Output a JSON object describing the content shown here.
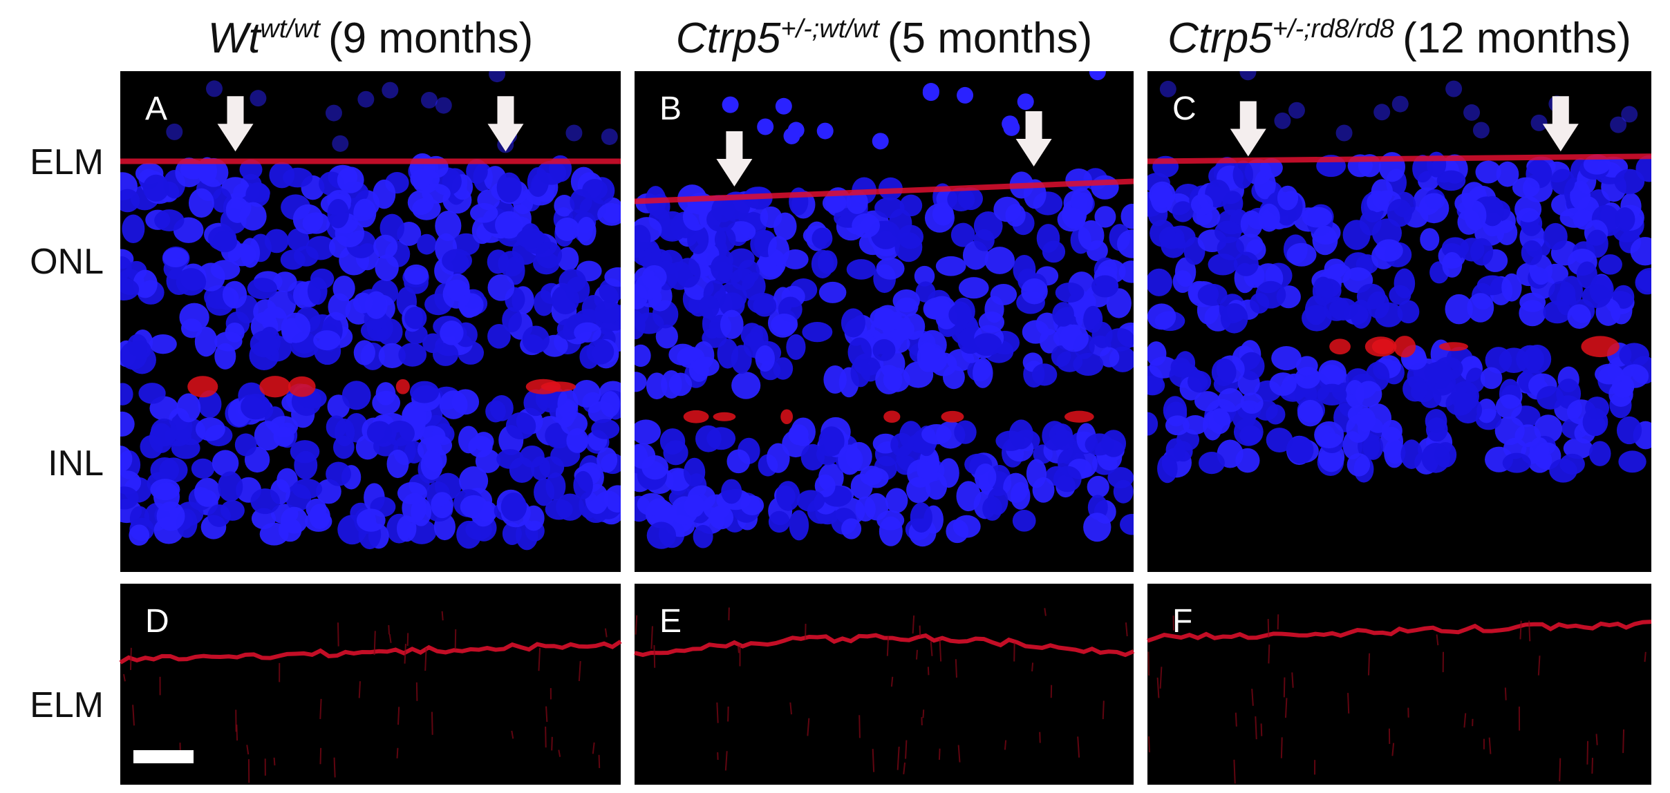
{
  "headers": [
    {
      "gene": "Wt",
      "genotype": "wt/wt",
      "age": "(9 months)"
    },
    {
      "gene": "Ctrp5",
      "genotype": "+/-;wt/wt",
      "age": "(5 months)"
    },
    {
      "gene": "Ctrp5",
      "genotype": "+/-;rd8/rd8",
      "age": "(12 months)"
    }
  ],
  "row_labels": [
    "ELM",
    "ONL",
    "INL",
    "ELM"
  ],
  "panels": [
    "A",
    "B",
    "C",
    "D",
    "E",
    "F"
  ]
}
